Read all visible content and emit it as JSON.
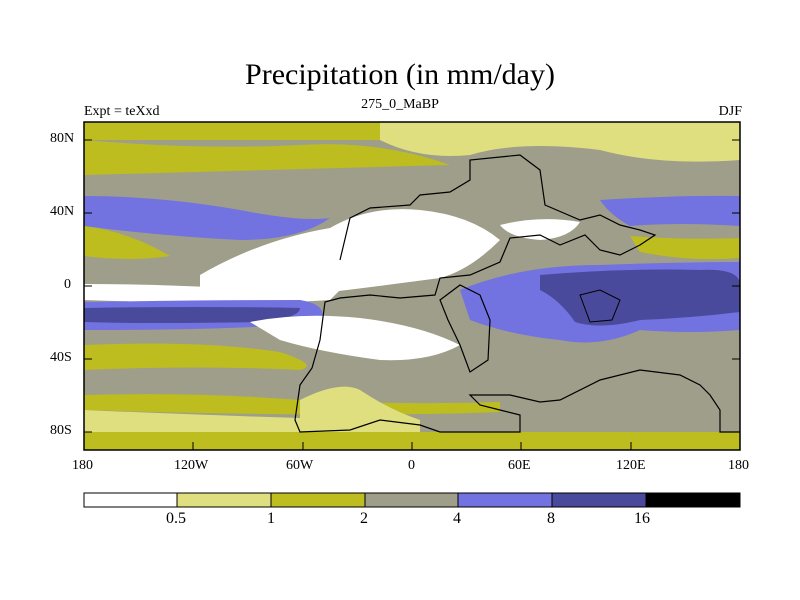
{
  "figure": {
    "title": "Precipitation (in mm/day)",
    "left_label": "Expt = teXxd",
    "center_label": "275_0_MaBP",
    "right_label": "DJF"
  },
  "axes": {
    "lat_ticks": [
      "80N",
      "40N",
      "0",
      "40S",
      "80S"
    ],
    "lon_ticks": [
      "180",
      "120W",
      "60W",
      "0",
      "60E",
      "120E",
      "180"
    ]
  },
  "colorbar": {
    "levels": [
      "0.5",
      "1",
      "2",
      "4",
      "8",
      "16"
    ],
    "colors": [
      "#ffffff",
      "#dfdf7f",
      "#bdbd1f",
      "#9e9e8a",
      "#7272e0",
      "#4a4a9c",
      "#000000"
    ]
  }
}
